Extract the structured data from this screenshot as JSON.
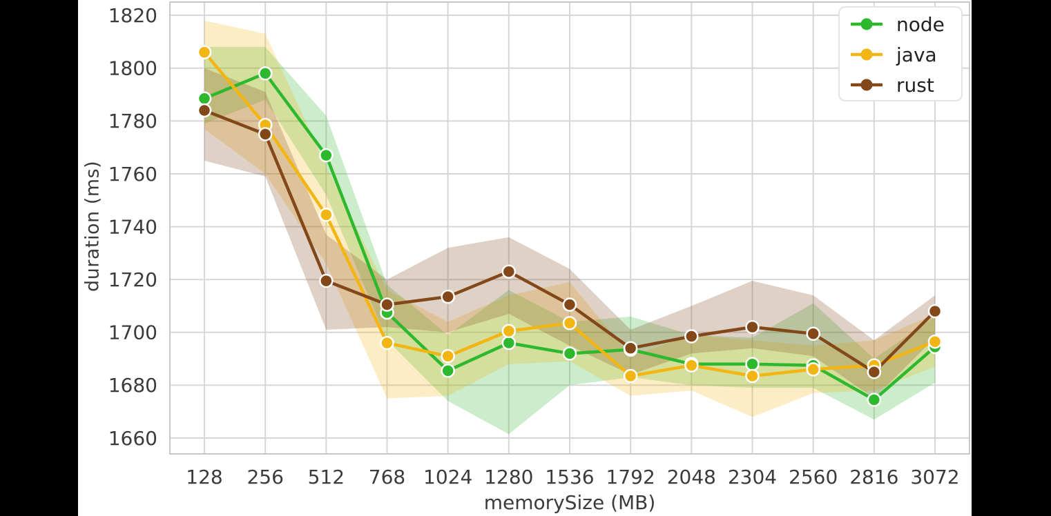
{
  "chart_data": {
    "type": "line",
    "title": "",
    "xlabel": "memorySize (MB)",
    "ylabel": "duration (ms)",
    "categories": [
      128,
      256,
      512,
      768,
      1024,
      1280,
      1536,
      1792,
      2048,
      2304,
      2560,
      2816,
      3072
    ],
    "y_ticks": [
      1660,
      1680,
      1700,
      1720,
      1740,
      1760,
      1780,
      1800,
      1820
    ],
    "ylim": [
      1654,
      1825
    ],
    "grid": true,
    "legend_position": "top-right",
    "series": [
      {
        "name": "node",
        "color": "#2eb82e",
        "values": [
          1788.5,
          1798,
          1767,
          1707.5,
          1685.5,
          1696,
          1692,
          1693.5,
          1688,
          1688,
          1687.5,
          1674.5,
          1694.5
        ],
        "band_low": [
          1779,
          1788,
          1752,
          1697,
          1674,
          1661.5,
          1680,
          1683,
          1680,
          1679,
          1679,
          1667,
          1681
        ],
        "band_high": [
          1808,
          1808,
          1782,
          1718,
          1699,
          1716,
          1704,
          1706,
          1699,
          1698,
          1711,
          1690,
          1706
        ]
      },
      {
        "name": "java",
        "color": "#f2b614",
        "values": [
          1806,
          1778.5,
          1744.5,
          1696,
          1691,
          1700.5,
          1703.5,
          1683.5,
          1687.5,
          1683.5,
          1686,
          1687.5,
          1696.5
        ],
        "band_low": [
          1777,
          1760,
          1726,
          1675,
          1676,
          1688,
          1689,
          1676,
          1678,
          1668,
          1677,
          1678,
          1687
        ],
        "band_high": [
          1818,
          1813,
          1763,
          1716,
          1704,
          1714,
          1719,
          1691,
          1699,
          1697,
          1695,
          1697,
          1707
        ]
      },
      {
        "name": "rust",
        "color": "#82481a",
        "values": [
          1784,
          1775,
          1719.5,
          1710.5,
          1713.5,
          1723,
          1710.5,
          1694,
          1698.5,
          1702,
          1699.5,
          1685,
          1708
        ],
        "band_low": [
          1765,
          1759,
          1701,
          1702,
          1700,
          1707,
          1695,
          1684,
          1692,
          1694,
          1691,
          1675,
          1698
        ],
        "band_high": [
          1800,
          1791,
          1737,
          1720,
          1732,
          1736,
          1724,
          1701,
          1710,
          1719.5,
          1714,
          1697,
          1714
        ]
      }
    ]
  },
  "style": {
    "grid_color": "#d6d6d6",
    "spine_color": "#c7c7c7",
    "tick_color": "#3b3b3b",
    "band_opacity": 0.25,
    "marker_edge_color": "#ffffff",
    "letterbox_color": "#000000",
    "canvas_color": "#ffffff"
  }
}
